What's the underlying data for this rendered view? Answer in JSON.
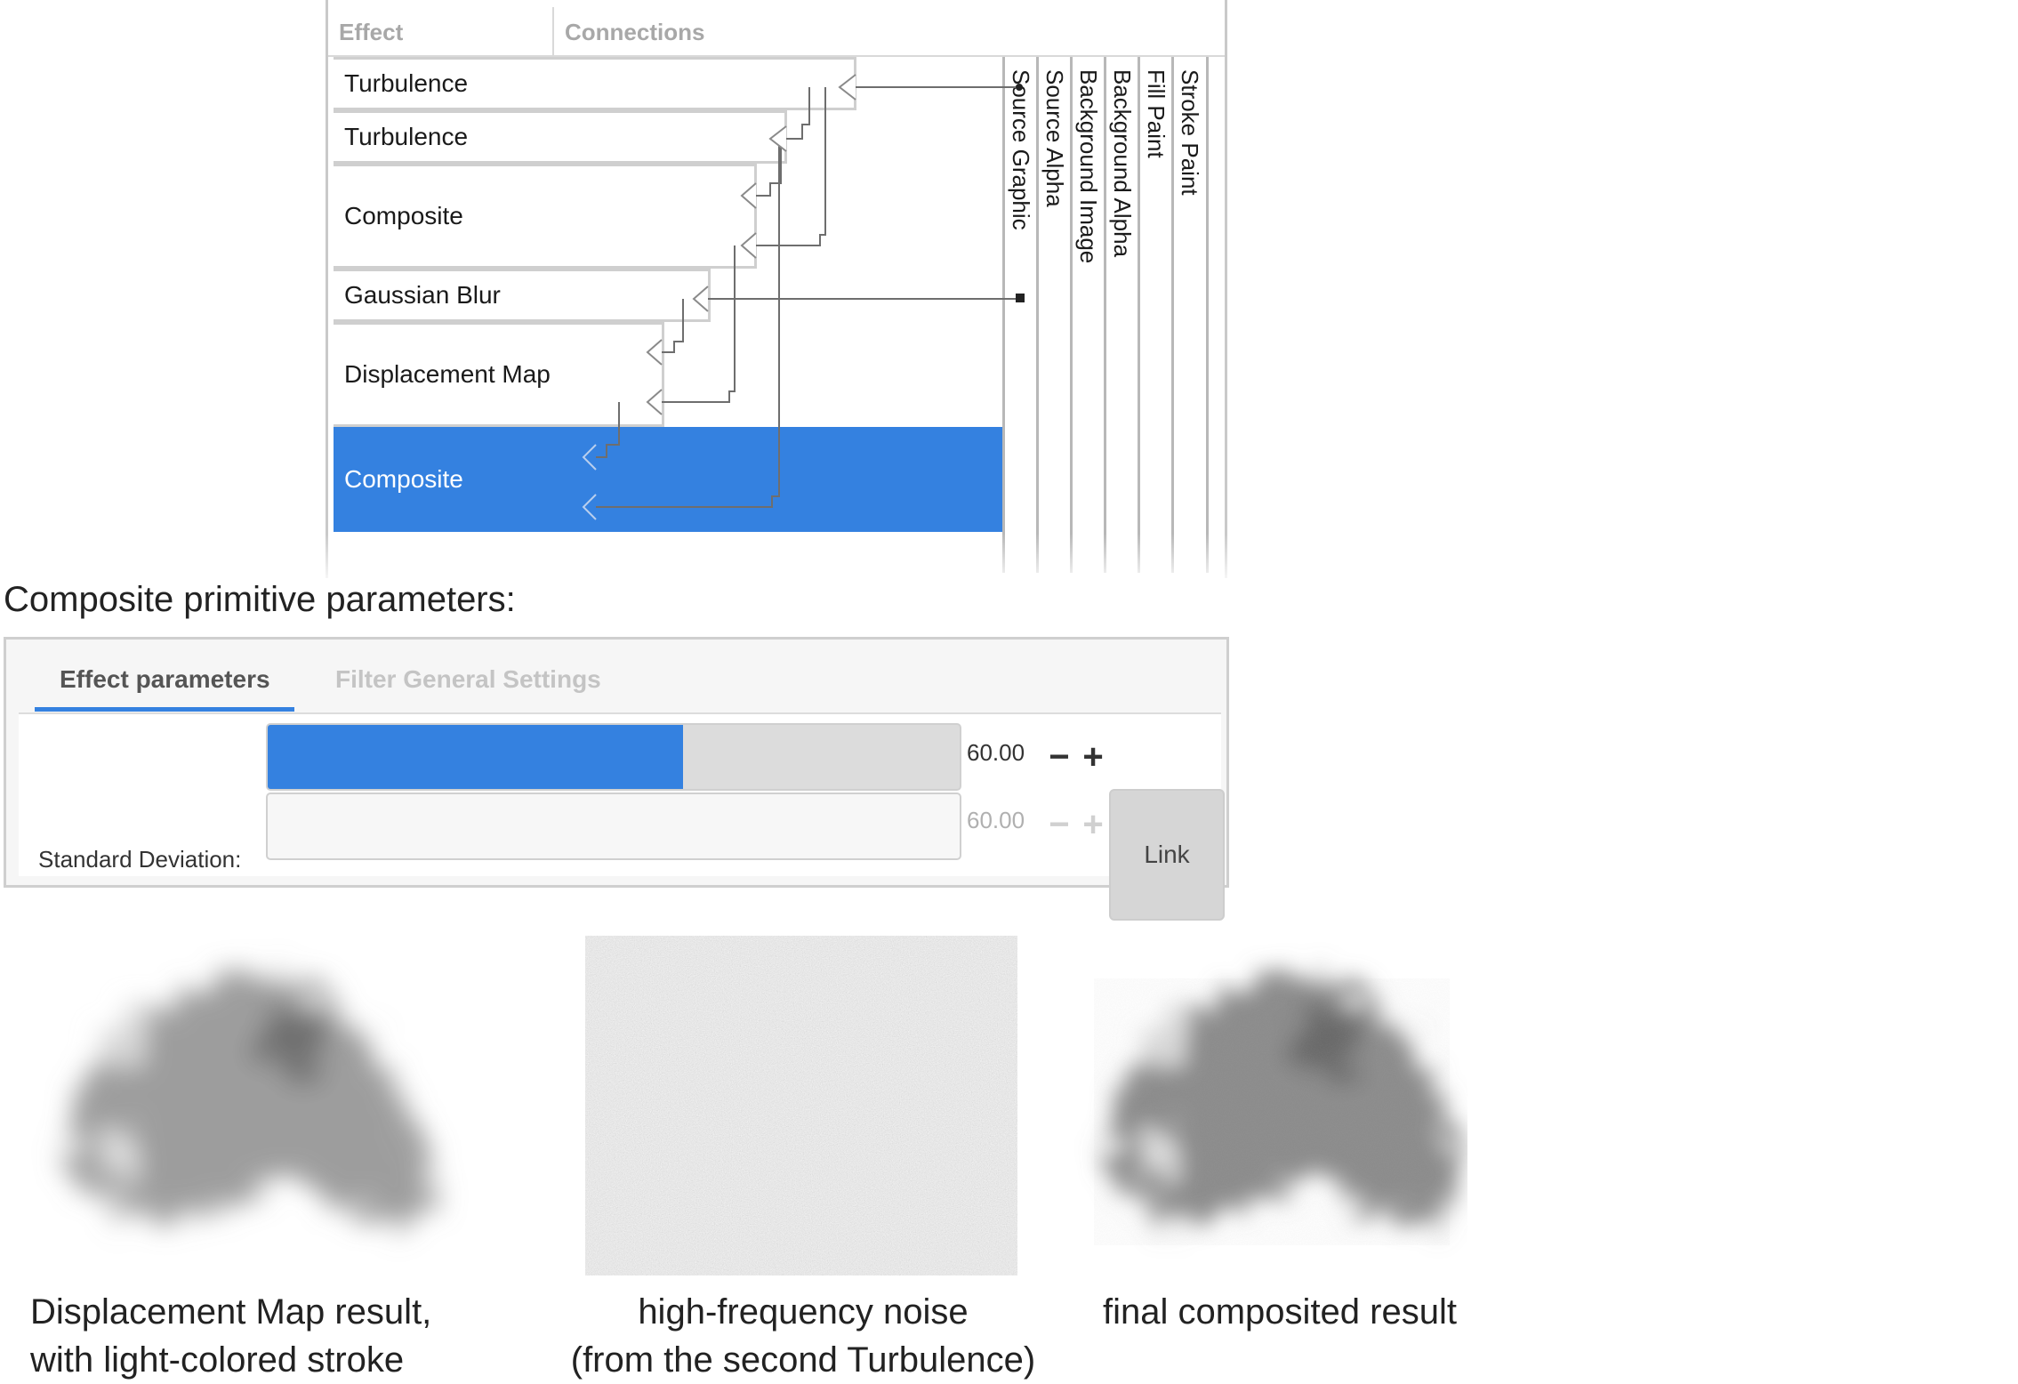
{
  "editor": {
    "headers": {
      "effect": "Effect",
      "connections": "Connections"
    },
    "rows": [
      {
        "label": "Turbulence"
      },
      {
        "label": "Turbulence"
      },
      {
        "label": "Composite"
      },
      {
        "label": "Gaussian Blur"
      },
      {
        "label": "Displacement Map"
      },
      {
        "label": "Composite",
        "selected": true
      }
    ],
    "sources": [
      "Source Graphic",
      "Source Alpha",
      "Background Image",
      "Background Alpha",
      "Fill Paint",
      "Stroke Paint"
    ]
  },
  "composite_title": "Composite primitive parameters:",
  "params": {
    "tabs": {
      "active": "Effect parameters",
      "inactive": "Filter General Settings"
    },
    "std_label": "Standard Deviation:",
    "value_x": "60.00",
    "value_y": "60.00",
    "fill_fraction": 0.6,
    "minus": "−",
    "plus": "+",
    "link_label": "Link"
  },
  "results": {
    "left_caption_1": "Displacement Map result,",
    "left_caption_2": "with light-colored stroke",
    "middle_caption_1": "high-frequency noise",
    "middle_caption_2": "(from the second Turbulence)",
    "right_caption_1": "final composited result"
  },
  "colors": {
    "accent": "#3481e0",
    "grid": "#cfcfcf"
  }
}
